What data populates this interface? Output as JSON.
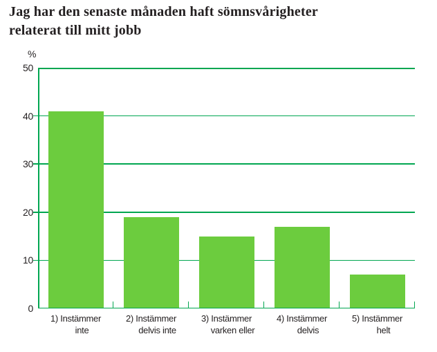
{
  "chart_data": {
    "type": "bar",
    "title": "Jag har den senaste månaden haft sömnsvårigheter relaterat till mitt jobb",
    "title_lines": [
      "Jag har den senaste månaden haft sömnsvårigheter",
      "relaterat till mitt jobb"
    ],
    "y_unit": "%",
    "categories": [
      "1) Instämmer inte",
      "2) Instämmer delvis inte",
      "3) Instämmer varken eller",
      "4) Instämmer delvis",
      "5) Instämmer helt"
    ],
    "categories_lines": [
      {
        "prefix": "1)",
        "line1": "Instämmer",
        "line2": "inte"
      },
      {
        "prefix": "2)",
        "line1": "Instämmer",
        "line2": "delvis inte"
      },
      {
        "prefix": "3)",
        "line1": "Instämmer",
        "line2": "varken eller"
      },
      {
        "prefix": "4)",
        "line1": "Instämmer",
        "line2": "delvis"
      },
      {
        "prefix": "5)",
        "line1": "Instämmer",
        "line2": "helt"
      }
    ],
    "values": [
      41,
      19,
      15,
      17,
      7
    ],
    "ylim": [
      0,
      50
    ],
    "yticks": [
      50,
      40,
      30,
      20,
      10,
      0
    ],
    "grid": true,
    "legend": false,
    "xlabel": "",
    "ylabel": "%"
  },
  "colors": {
    "bar": "#6CCC3E",
    "axis": "#00A650",
    "text": "#231F20",
    "background": "#FFFFFF"
  }
}
